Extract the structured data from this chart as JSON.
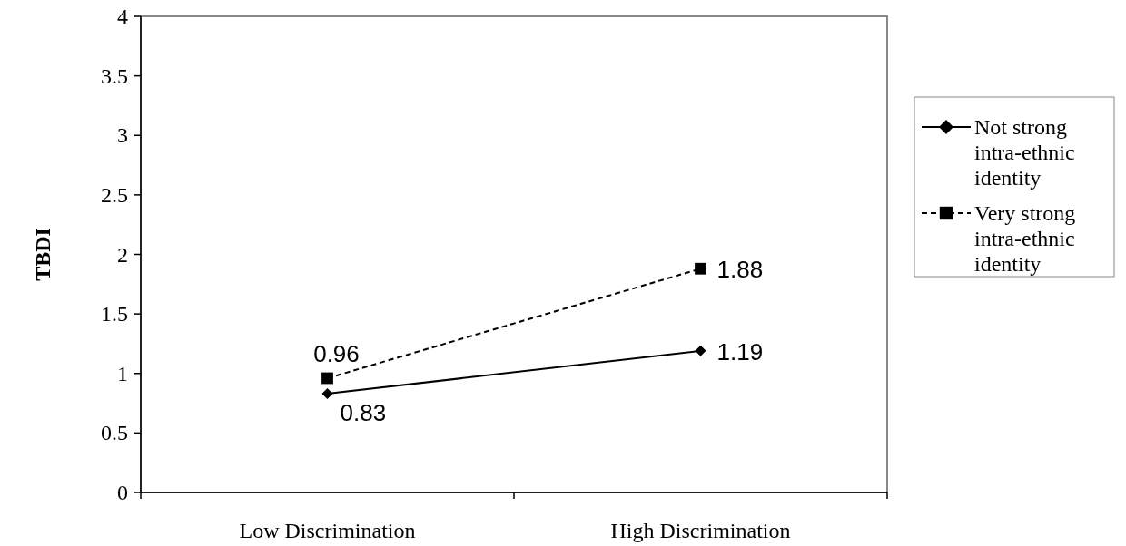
{
  "chart_data": {
    "type": "line",
    "ylabel": "TBDI",
    "categories": [
      "Low Discrimination",
      "High Discrimination"
    ],
    "ylim": [
      0,
      4
    ],
    "yticks": [
      0,
      0.5,
      1,
      1.5,
      2,
      2.5,
      3,
      3.5,
      4
    ],
    "grid": false,
    "legend": "right",
    "data_labels": true,
    "series": [
      {
        "name": "Not strong intra-ethnic identity",
        "color": "#000000",
        "values": [
          0.83,
          1.19
        ],
        "marker": "diamond",
        "line_style": "solid"
      },
      {
        "name": "Very strong intra-ethnic identity",
        "color": "#000000",
        "values": [
          0.96,
          1.88
        ],
        "marker": "square",
        "line_style": "dashed"
      }
    ]
  }
}
